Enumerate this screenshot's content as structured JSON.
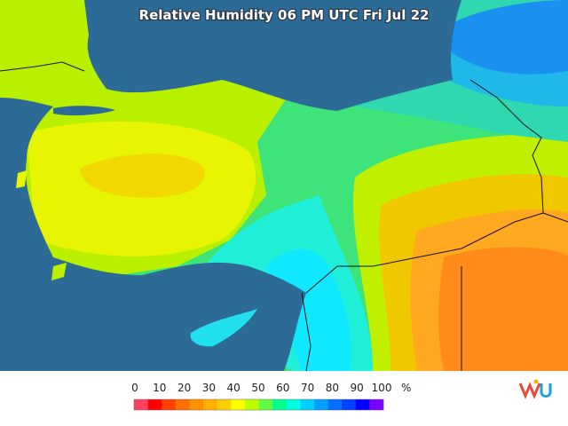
{
  "header": {
    "title": "Relative Humidity 06 PM UTC Fri Jul 22"
  },
  "legend": {
    "labels": [
      "0",
      "10",
      "20",
      "30",
      "40",
      "50",
      "60",
      "70",
      "80",
      "90",
      "100"
    ],
    "unit": "%"
  }
}
